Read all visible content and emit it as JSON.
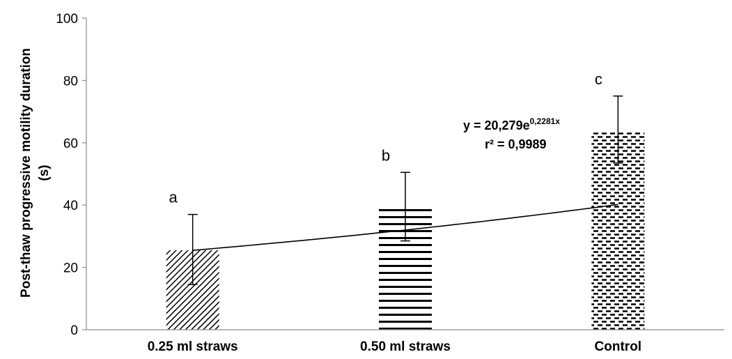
{
  "chart_data": {
    "type": "bar",
    "title": "",
    "xlabel": "",
    "ylabel_line1": "Post-thaw progressive motility duration",
    "ylabel_line2": "(s)",
    "ylim": [
      0,
      100
    ],
    "yticks": [
      0,
      20,
      40,
      60,
      80,
      100
    ],
    "categories": [
      "0.25 ml straws",
      "0.50 ml straws",
      "Control"
    ],
    "values": [
      25.5,
      39,
      63.5
    ],
    "error_low": [
      14.5,
      28.5,
      53.5
    ],
    "error_high": [
      37,
      50.5,
      75
    ],
    "significance_letters": [
      "a",
      "b",
      "c"
    ],
    "bar_patterns": [
      "diagonal-hatch",
      "horizontal-lines",
      "dashed-lines"
    ],
    "trendline": {
      "type": "exponential",
      "equation_base": "y = 20,279e",
      "equation_exponent": "0,2281x",
      "r2_label": "r² = 0,9989",
      "a": 20.279,
      "b": 0.2281
    },
    "grid": false,
    "legend": "none"
  }
}
